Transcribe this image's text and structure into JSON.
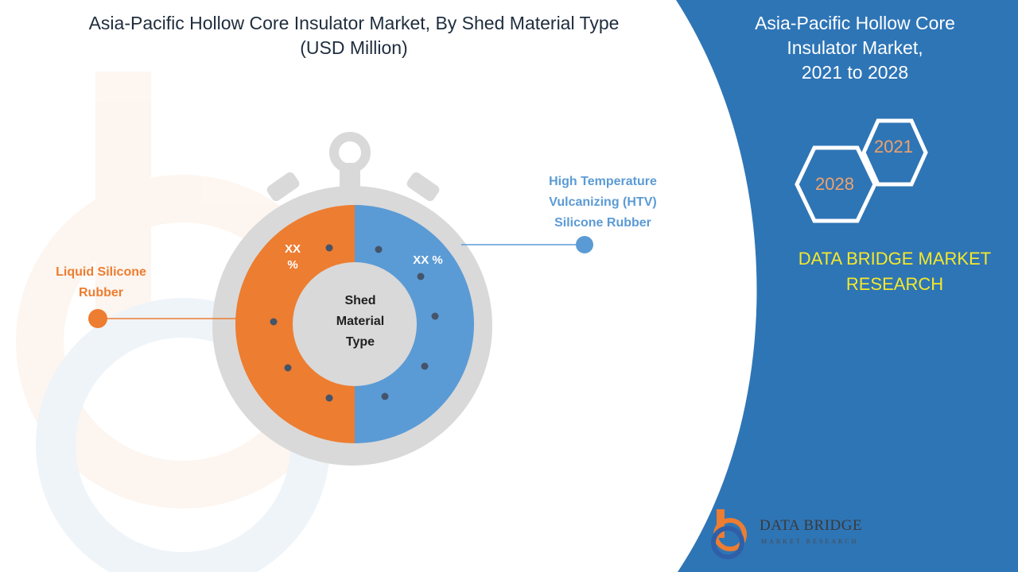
{
  "title": {
    "line1": "Asia-Pacific Hollow Core Insulator Market, By Shed Material Type",
    "line2": "(USD Million)"
  },
  "right_panel": {
    "title_line1": "Asia-Pacific Hollow Core",
    "title_line2": "Insulator Market,",
    "title_line3": "2021 to 2028",
    "year_start": "2021",
    "year_end": "2028",
    "brand_line1": "DATA BRIDGE MARKET",
    "brand_line2": "RESEARCH",
    "panel_color": "#2e75b6",
    "brand_color": "#f5e82a"
  },
  "logo": {
    "name": "DATA BRIDGE",
    "tagline": "MARKET RESEARCH"
  },
  "chart_data": {
    "type": "pie",
    "center_label": [
      "Shed",
      "Material",
      "Type"
    ],
    "slices": [
      {
        "name": "Liquid Silicone Rubber",
        "label_lines": [
          "Liquid Silicone",
          "Rubber"
        ],
        "value_label": "XX %",
        "value_label_lines": [
          "XX",
          "%"
        ],
        "share": 0.5,
        "color": "#ed7d31"
      },
      {
        "name": "High Temperature Vulcanizing (HTV) Silicone Rubber",
        "label_lines": [
          "High Temperature",
          "Vulcanizing  (HTV)",
          "Silicone Rubber"
        ],
        "value_label": "XX %",
        "share": 0.5,
        "color": "#5b9bd5"
      }
    ]
  }
}
